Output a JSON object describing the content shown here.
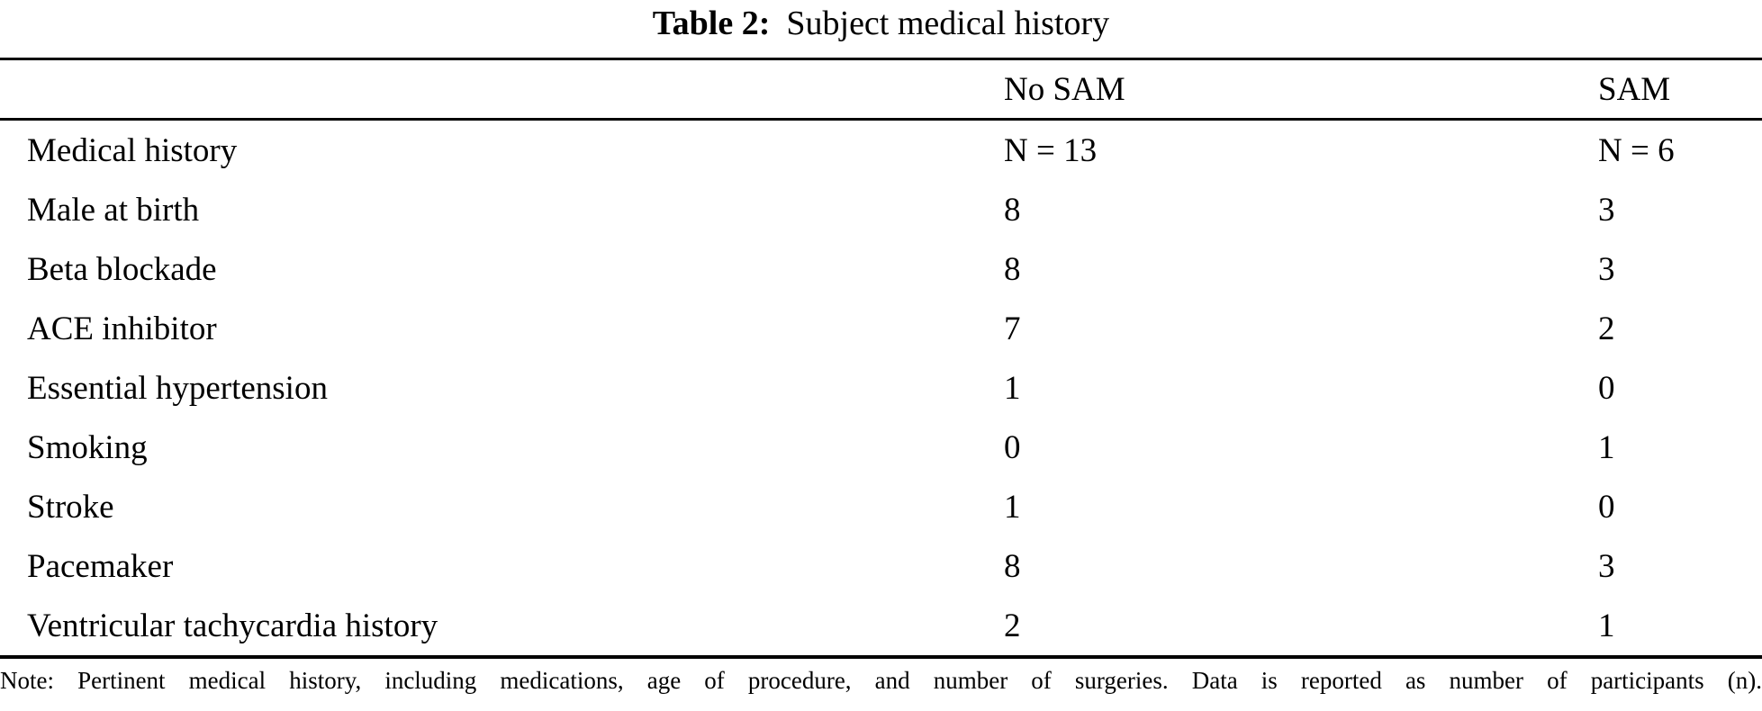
{
  "page": {
    "background_color": "#ffffff",
    "text_color": "#000000",
    "rule_color": "#000000"
  },
  "table": {
    "title": {
      "label": "Table 2:",
      "text": "Subject medical history"
    },
    "header": {
      "row_label": "",
      "no_sam": "No SAM",
      "sam": "SAM"
    },
    "rows": [
      {
        "label": "Medical history",
        "no_sam": "N = 13",
        "sam": "N = 6"
      },
      {
        "label": "Male at birth",
        "no_sam": "8",
        "sam": "3"
      },
      {
        "label": "Beta blockade",
        "no_sam": "8",
        "sam": "3"
      },
      {
        "label": "ACE inhibitor",
        "no_sam": "7",
        "sam": "2"
      },
      {
        "label": "Essential hypertension",
        "no_sam": "1",
        "sam": "0"
      },
      {
        "label": "Smoking",
        "no_sam": "0",
        "sam": "1"
      },
      {
        "label": "Stroke",
        "no_sam": "1",
        "sam": "0"
      },
      {
        "label": "Pacemaker",
        "no_sam": "8",
        "sam": "3"
      },
      {
        "label": "Ventricular tachycardia history",
        "no_sam": "2",
        "sam": "1"
      }
    ],
    "note": "Note: Pertinent medical history, including medications, age of procedure, and number of surgeries. Data is reported as number of participants (n)."
  }
}
